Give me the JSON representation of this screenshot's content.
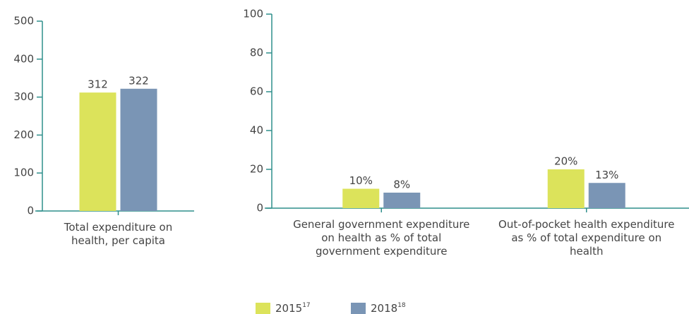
{
  "chart_data": [
    {
      "type": "bar",
      "categories": [
        "Total expenditure on health, per capita"
      ],
      "series": [
        {
          "name": "2015",
          "footnote": "17",
          "color": "#dce35b",
          "values": [
            312
          ]
        },
        {
          "name": "2018",
          "footnote": "18",
          "color": "#7a95b5",
          "values": [
            322
          ]
        }
      ],
      "ylim": [
        0,
        500
      ],
      "yticks": [
        0,
        100,
        200,
        300,
        400,
        500
      ]
    },
    {
      "type": "bar",
      "categories": [
        "General government expenditure on health as % of total government expenditure",
        "Out-of-pocket health expenditure as % of total expenditure on health"
      ],
      "series": [
        {
          "color": "#dce35b",
          "values": [
            10,
            20
          ],
          "value_labels": [
            "10%",
            "20%"
          ]
        },
        {
          "color": "#7a95b5",
          "values": [
            8,
            13
          ],
          "value_labels": [
            "8%",
            "13%"
          ]
        }
      ],
      "ylim": [
        0,
        100
      ],
      "yticks": [
        0,
        20,
        40,
        60,
        80,
        100
      ]
    }
  ]
}
